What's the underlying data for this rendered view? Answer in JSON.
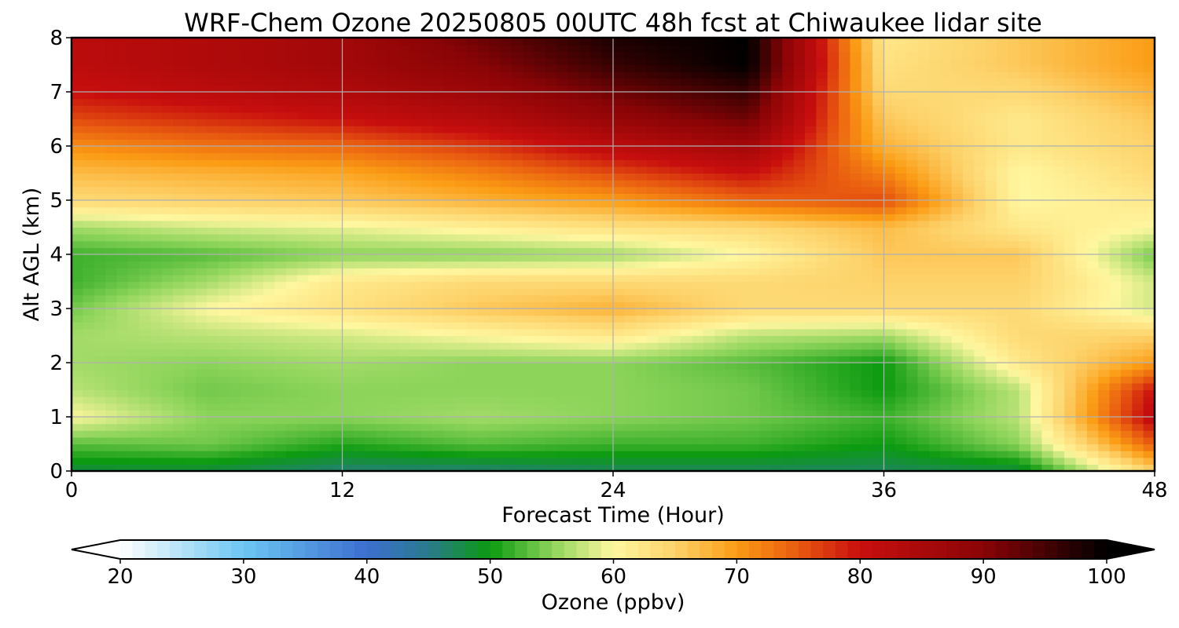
{
  "chart_data": {
    "type": "heatmap",
    "title": "WRF-Chem Ozone  20250805 00UTC 48h fcst at Chiwaukee lidar site",
    "xlabel": "Forecast Time (Hour)",
    "ylabel": "Alt AGL (km)",
    "xlim": [
      0,
      48
    ],
    "ylim": [
      0,
      8
    ],
    "xticks": [
      "0",
      "12",
      "24",
      "36",
      "48"
    ],
    "yticks": [
      "0",
      "1",
      "2",
      "3",
      "4",
      "5",
      "6",
      "7",
      "8"
    ],
    "grid": true,
    "x": [
      0,
      6,
      12,
      18,
      24,
      30,
      36,
      42,
      48
    ],
    "y": [
      0,
      0.5,
      1,
      1.5,
      2,
      2.5,
      3,
      3.5,
      4,
      4.5,
      5,
      5.5,
      6,
      6.5,
      7,
      7.5,
      8
    ],
    "z": [
      [
        48,
        48,
        46,
        46,
        47,
        47,
        47,
        48,
        65
      ],
      [
        53,
        54,
        51,
        53,
        52,
        52,
        50,
        55,
        75
      ],
      [
        60,
        55,
        55,
        56,
        55,
        54,
        52,
        57,
        82
      ],
      [
        57,
        54,
        55,
        55,
        55,
        54,
        50,
        57,
        80
      ],
      [
        56,
        55,
        56,
        55,
        55,
        53,
        50,
        62,
        70
      ],
      [
        56,
        57,
        58,
        60,
        62,
        57,
        56,
        64,
        65
      ],
      [
        54,
        60,
        63,
        66,
        68,
        64,
        64,
        64,
        58
      ],
      [
        52,
        56,
        62,
        64,
        64,
        64,
        65,
        65,
        58
      ],
      [
        52,
        53,
        55,
        55,
        56,
        60,
        66,
        66,
        54
      ],
      [
        56,
        58,
        59,
        61,
        63,
        64,
        67,
        62,
        60
      ],
      [
        64,
        65,
        66,
        68,
        70,
        74,
        76,
        60,
        62
      ],
      [
        67,
        68,
        69,
        72,
        76,
        80,
        72,
        60,
        64
      ],
      [
        71,
        73,
        74,
        77,
        82,
        86,
        68,
        62,
        65
      ],
      [
        76,
        78,
        80,
        83,
        88,
        92,
        66,
        62,
        66
      ],
      [
        80,
        82,
        84,
        87,
        92,
        96,
        64,
        64,
        68
      ],
      [
        82,
        84,
        86,
        90,
        96,
        100,
        63,
        66,
        70
      ],
      [
        82,
        84,
        86,
        92,
        98,
        100,
        62,
        66,
        70
      ]
    ],
    "colorbar": {
      "label": "Ozone  (ppbv)",
      "min": 20,
      "max": 100,
      "extend": "both",
      "ticks": [
        "20",
        "30",
        "40",
        "50",
        "60",
        "70",
        "80",
        "90",
        "100"
      ],
      "stops": [
        {
          "v": 20,
          "color": "#ffffff"
        },
        {
          "v": 30,
          "color": "#6cc6f3"
        },
        {
          "v": 40,
          "color": "#3c6fcf"
        },
        {
          "v": 45,
          "color": "#2a7a8c"
        },
        {
          "v": 50,
          "color": "#0b9a10"
        },
        {
          "v": 55,
          "color": "#8cd45a"
        },
        {
          "v": 60,
          "color": "#fff7a0"
        },
        {
          "v": 65,
          "color": "#fdd26a"
        },
        {
          "v": 70,
          "color": "#fb9c14"
        },
        {
          "v": 75,
          "color": "#e85a10"
        },
        {
          "v": 80,
          "color": "#c80e0e"
        },
        {
          "v": 90,
          "color": "#8a0406"
        },
        {
          "v": 100,
          "color": "#000000"
        }
      ]
    }
  }
}
